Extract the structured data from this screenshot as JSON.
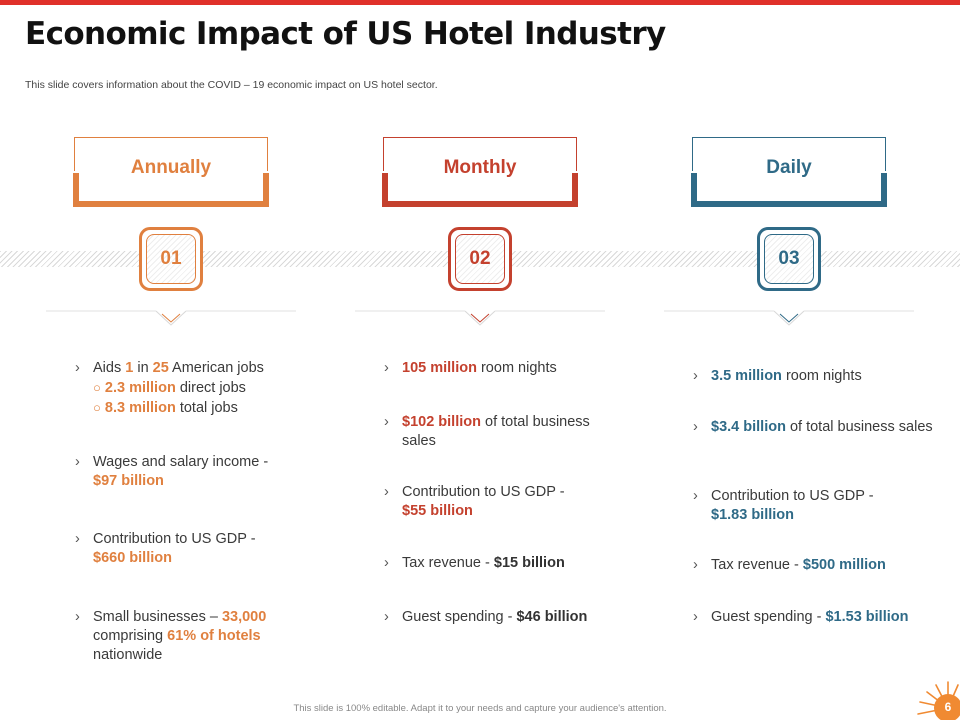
{
  "title": "Economic Impact of US Hotel Industry",
  "subtitle": "This slide covers information about the COVID – 19 economic impact on US hotel sector.",
  "columns": [
    {
      "header": "Annually",
      "number": "01",
      "accent": "#e0803f",
      "bullets": [
        {
          "t1": "Aids ",
          "h1": "1",
          "t2": " in ",
          "h2": "25",
          "t3": " American jobs",
          "subs": [
            {
              "h": "2.3 million",
              "t": " direct jobs"
            },
            {
              "h": "8.3 million",
              "t": " total jobs"
            }
          ]
        },
        {
          "t1": "Wages and salary income - ",
          "h1": "$97 billion"
        },
        {
          "t1": "Contribution to US GDP - ",
          "h1": "$660 billion"
        },
        {
          "t1": "Small businesses – ",
          "h1": "33,000",
          "t2": " comprising ",
          "h2": "61% of hotels",
          "t3": " nationwide"
        }
      ]
    },
    {
      "header": "Monthly",
      "number": "02",
      "accent": "#c4412e",
      "bullets": [
        {
          "h1": "105 million",
          "t1": " room nights"
        },
        {
          "h1": "$102 billion",
          "t1": " of total business sales"
        },
        {
          "t1": "Contribution to US GDP - ",
          "h1": "$55 billion"
        },
        {
          "t1": "Tax revenue  - ",
          "h1": "$15 billion"
        },
        {
          "t1": "Guest spending - ",
          "h1": "$46 billion"
        }
      ]
    },
    {
      "header": "Daily",
      "number": "03",
      "accent": "#2f6a87",
      "bullets": [
        {
          "h1": "3.5 million",
          "t1": " room nights"
        },
        {
          "h1": "$3.4 billion",
          "t1": " of total business sales"
        },
        {
          "t1": "Contribution to US GDP - ",
          "h1": "$1.83 billion"
        },
        {
          "t1": "Tax revenue  - ",
          "h1": "$500 million"
        },
        {
          "t1": "Guest spending - ",
          "h1": "$1.53 billion"
        }
      ]
    }
  ],
  "footer": "This slide is 100% editable.  Adapt it to your needs and capture your audience's attention.",
  "page_number": "6",
  "icons": {
    "bullet": "chevron-right-icon",
    "sub_bullet": "circle-outline-icon",
    "badge": "sunburst-icon"
  }
}
